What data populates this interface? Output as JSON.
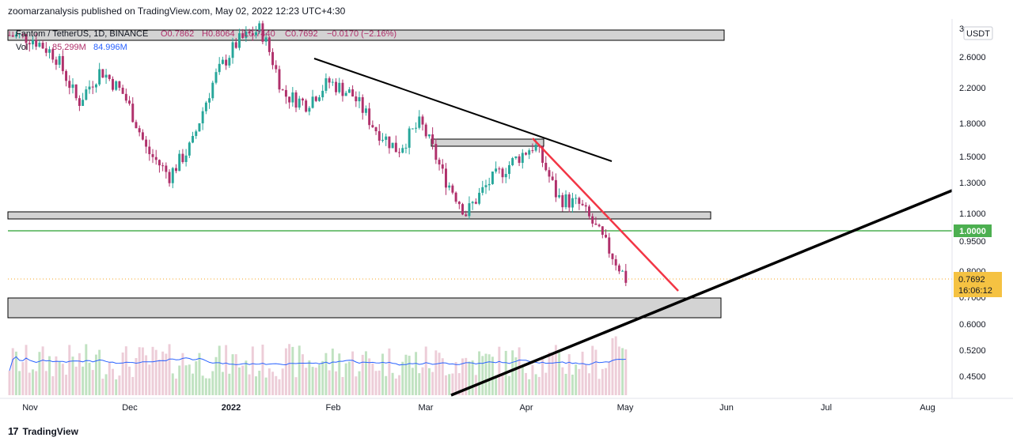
{
  "header": {
    "published_line": "zoomarzanalysis published on TradingView.com, May 02, 2022 12:23 UTC+4:30"
  },
  "legend": {
    "symbol_line": "Fantom / TetherUS, 1D, BINANCE",
    "open": "O0.7862",
    "high": "H0.8064",
    "low": "L0.7440",
    "close": "C0.7692",
    "change": "−0.0170 (−2.16%)",
    "volume_label": "Vol",
    "volume_value": "85.299M",
    "volume_ma": "84.996M"
  },
  "price_axis": {
    "currency": "USDT",
    "ticks": [
      "3",
      "2.6000",
      "2.2000",
      "1.8000",
      "1.5000",
      "1.3000",
      "1.1000",
      "0.9500",
      "0.8000",
      "0.7000",
      "0.6000",
      "0.5200",
      "0.4500"
    ],
    "last_price": "0.7692",
    "countdown": "16:06:12",
    "level_label": "1.0000"
  },
  "time_axis": {
    "ticks": [
      "Nov",
      "Dec",
      "2022",
      "Feb",
      "Mar",
      "Apr",
      "May",
      "Jun",
      "Jul",
      "Aug"
    ]
  },
  "footer": {
    "brand": "TradingView"
  },
  "colors": {
    "up": "#26a69a",
    "down": "#b0306b",
    "support_line": "#4caf50",
    "red_trendline": "#f23645",
    "black_trendline": "#000000",
    "zone_fill": "#d1d1d1",
    "vol_ma": "#2962ff",
    "last_price_bg": "#f5c242"
  },
  "chart_data": {
    "type": "candlestick",
    "symbol": "Fantom / TetherUS",
    "interval": "1D",
    "exchange": "BINANCE",
    "log_scale": true,
    "ylim": [
      0.42,
      3.1
    ],
    "last_candle": {
      "open": 0.7862,
      "high": 0.8064,
      "low": 0.744,
      "close": 0.7692,
      "change": -0.017,
      "change_pct": -2.16
    },
    "series": [
      {
        "name": "FTM/USDT close (approx. weekly)",
        "x": [
          "2021-10-27",
          "2021-11-03",
          "2021-11-10",
          "2021-11-17",
          "2021-11-24",
          "2021-12-01",
          "2021-12-08",
          "2021-12-15",
          "2021-12-22",
          "2021-12-29",
          "2022-01-05",
          "2022-01-12",
          "2022-01-19",
          "2022-01-26",
          "2022-02-02",
          "2022-02-09",
          "2022-02-16",
          "2022-02-23",
          "2022-03-02",
          "2022-03-09",
          "2022-03-16",
          "2022-03-23",
          "2022-03-30",
          "2022-04-06",
          "2022-04-13",
          "2022-04-20",
          "2022-04-27",
          "2022-05-02"
        ],
        "values": [
          2.9,
          2.85,
          2.6,
          2.0,
          2.4,
          2.1,
          1.55,
          1.35,
          1.6,
          2.3,
          2.8,
          3.0,
          2.1,
          2.0,
          2.25,
          2.1,
          1.75,
          1.55,
          1.8,
          1.35,
          1.1,
          1.3,
          1.45,
          1.6,
          1.2,
          1.15,
          0.95,
          0.77
        ]
      }
    ],
    "volume": {
      "last": "85.299M",
      "ma": "84.996M"
    },
    "levels": [
      {
        "type": "zone",
        "low": 2.72,
        "high": 2.88
      },
      {
        "type": "zone",
        "low": 1.62,
        "high": 1.7
      },
      {
        "type": "zone",
        "low": 1.06,
        "high": 1.1
      },
      {
        "type": "zone",
        "low": 0.64,
        "high": 0.72
      },
      {
        "type": "horizontal",
        "value": 1.0
      }
    ],
    "trendlines": [
      {
        "color": "black",
        "from": [
          "2022-01-26",
          2.6
        ],
        "to": [
          "2022-04-28",
          1.5
        ]
      },
      {
        "color": "red",
        "from": [
          "2022-04-03",
          1.68
        ],
        "to": [
          "2022-05-16",
          0.72
        ]
      },
      {
        "color": "black",
        "from": [
          "2022-03-10",
          0.42
        ],
        "to": [
          "2022-08-25",
          1.25
        ]
      }
    ]
  }
}
